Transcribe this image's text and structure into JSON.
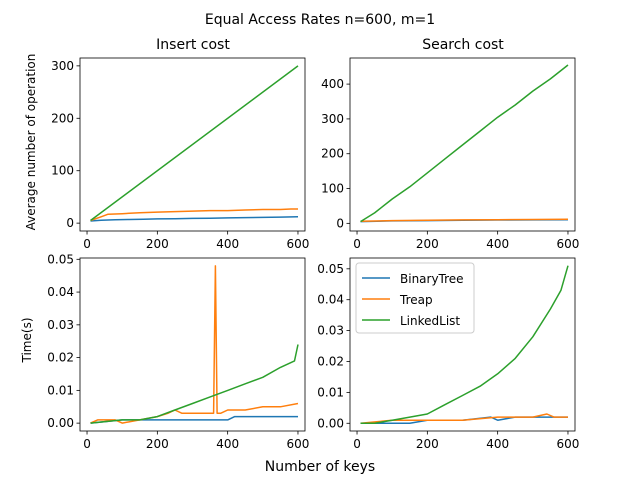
{
  "figure": {
    "suptitle": "Equal Access Rates n=600, m=1",
    "xlabel": "Number of keys"
  },
  "legend": [
    "BinaryTree",
    "Treap",
    "LinkedList"
  ],
  "colors": {
    "BinaryTree": "#1f77b4",
    "Treap": "#ff7f0e",
    "LinkedList": "#2ca02c"
  },
  "chart_data": [
    {
      "type": "line",
      "title": "Insert cost",
      "xlabel": "",
      "ylabel": "Average number of operation",
      "xlim": [
        -20,
        620
      ],
      "ylim": [
        -15,
        315
      ],
      "xticks": [
        0,
        200,
        400,
        600
      ],
      "yticks": [
        0,
        100,
        200,
        300
      ],
      "ytick_labels": [
        "0",
        "100",
        "200",
        "300"
      ],
      "series": [
        {
          "name": "BinaryTree",
          "x": [
            10,
            40,
            80,
            120,
            160,
            200,
            250,
            300,
            350,
            400,
            450,
            500,
            550,
            600
          ],
          "y": [
            4,
            5.5,
            6.5,
            7,
            7.5,
            8,
            8.5,
            9,
            9.5,
            10,
            10.5,
            11,
            11.5,
            12
          ]
        },
        {
          "name": "Treap",
          "x": [
            10,
            40,
            60,
            100,
            150,
            200,
            250,
            300,
            350,
            400,
            450,
            500,
            550,
            580,
            600
          ],
          "y": [
            5,
            12,
            17,
            18,
            20,
            21,
            22,
            23,
            24,
            24,
            25,
            26,
            26,
            27,
            27
          ]
        },
        {
          "name": "LinkedList",
          "x": [
            10,
            600
          ],
          "y": [
            5,
            300
          ]
        }
      ]
    },
    {
      "type": "line",
      "title": "Search cost",
      "xlabel": "",
      "ylabel": "",
      "xlim": [
        -20,
        620
      ],
      "ylim": [
        -22,
        475
      ],
      "xticks": [
        0,
        200,
        400,
        600
      ],
      "yticks": [
        0,
        100,
        200,
        300,
        400
      ],
      "ytick_labels": [
        "0",
        "100",
        "200",
        "300",
        "400"
      ],
      "series": [
        {
          "name": "BinaryTree",
          "x": [
            10,
            100,
            200,
            300,
            400,
            500,
            600
          ],
          "y": [
            5,
            7,
            8,
            9,
            9.5,
            10,
            10.5
          ]
        },
        {
          "name": "Treap",
          "x": [
            10,
            100,
            200,
            300,
            400,
            500,
            600
          ],
          "y": [
            6,
            8,
            9,
            10,
            10.5,
            11,
            12
          ]
        },
        {
          "name": "LinkedList",
          "x": [
            10,
            50,
            100,
            150,
            200,
            250,
            300,
            350,
            400,
            450,
            500,
            550,
            600
          ],
          "y": [
            5,
            30,
            70,
            105,
            145,
            185,
            225,
            265,
            305,
            340,
            380,
            415,
            455
          ]
        }
      ]
    },
    {
      "type": "line",
      "title": "",
      "xlabel": "",
      "ylabel": "Time(s)",
      "xlim": [
        -20,
        620
      ],
      "ylim": [
        -0.0024,
        0.0504
      ],
      "xticks": [
        0,
        200,
        400,
        600
      ],
      "yticks": [
        0,
        0.01,
        0.02,
        0.03,
        0.04,
        0.05
      ],
      "ytick_labels": [
        "0.00",
        "0.01",
        "0.02",
        "0.03",
        "0.04",
        "0.05"
      ],
      "series": [
        {
          "name": "BinaryTree",
          "x": [
            10,
            100,
            150,
            200,
            250,
            300,
            350,
            400,
            420,
            450,
            500,
            550,
            600
          ],
          "y": [
            0,
            0.001,
            0.001,
            0.001,
            0.001,
            0.001,
            0.001,
            0.001,
            0.002,
            0.002,
            0.002,
            0.002,
            0.002
          ]
        },
        {
          "name": "Treap",
          "x": [
            10,
            30,
            80,
            100,
            150,
            200,
            230,
            250,
            270,
            300,
            350,
            360,
            365,
            370,
            380,
            400,
            450,
            500,
            550,
            600
          ],
          "y": [
            0,
            0.001,
            0.001,
            0,
            0.001,
            0.002,
            0.003,
            0.004,
            0.003,
            0.003,
            0.003,
            0.003,
            0.048,
            0.003,
            0.003,
            0.004,
            0.004,
            0.005,
            0.005,
            0.006
          ]
        },
        {
          "name": "LinkedList",
          "x": [
            10,
            100,
            150,
            200,
            250,
            300,
            350,
            400,
            450,
            500,
            550,
            590,
            600
          ],
          "y": [
            0,
            0.001,
            0.001,
            0.002,
            0.004,
            0.006,
            0.008,
            0.01,
            0.012,
            0.014,
            0.017,
            0.019,
            0.024
          ]
        }
      ]
    },
    {
      "type": "line",
      "title": "",
      "xlabel": "",
      "ylabel": "",
      "xlim": [
        -20,
        620
      ],
      "ylim": [
        -0.0025,
        0.0535
      ],
      "xticks": [
        0,
        200,
        400,
        600
      ],
      "yticks": [
        0,
        0.01,
        0.02,
        0.03,
        0.04,
        0.05
      ],
      "ytick_labels": [
        "0.00",
        "0.01",
        "0.02",
        "0.03",
        "0.04",
        "0.05"
      ],
      "legend_loc": "upper left",
      "series": [
        {
          "name": "BinaryTree",
          "x": [
            10,
            150,
            200,
            300,
            380,
            400,
            450,
            500,
            550,
            600
          ],
          "y": [
            0,
            0,
            0.001,
            0.001,
            0.002,
            0.001,
            0.002,
            0.002,
            0.002,
            0.002
          ]
        },
        {
          "name": "Treap",
          "x": [
            10,
            100,
            200,
            250,
            300,
            400,
            450,
            500,
            540,
            560,
            600
          ],
          "y": [
            0,
            0.001,
            0.001,
            0.001,
            0.001,
            0.002,
            0.002,
            0.002,
            0.003,
            0.002,
            0.002
          ]
        },
        {
          "name": "LinkedList",
          "x": [
            10,
            50,
            100,
            150,
            200,
            250,
            300,
            350,
            400,
            450,
            500,
            550,
            580,
            600
          ],
          "y": [
            0,
            0,
            0.001,
            0.002,
            0.003,
            0.006,
            0.009,
            0.012,
            0.016,
            0.021,
            0.028,
            0.037,
            0.043,
            0.051
          ]
        }
      ]
    }
  ]
}
